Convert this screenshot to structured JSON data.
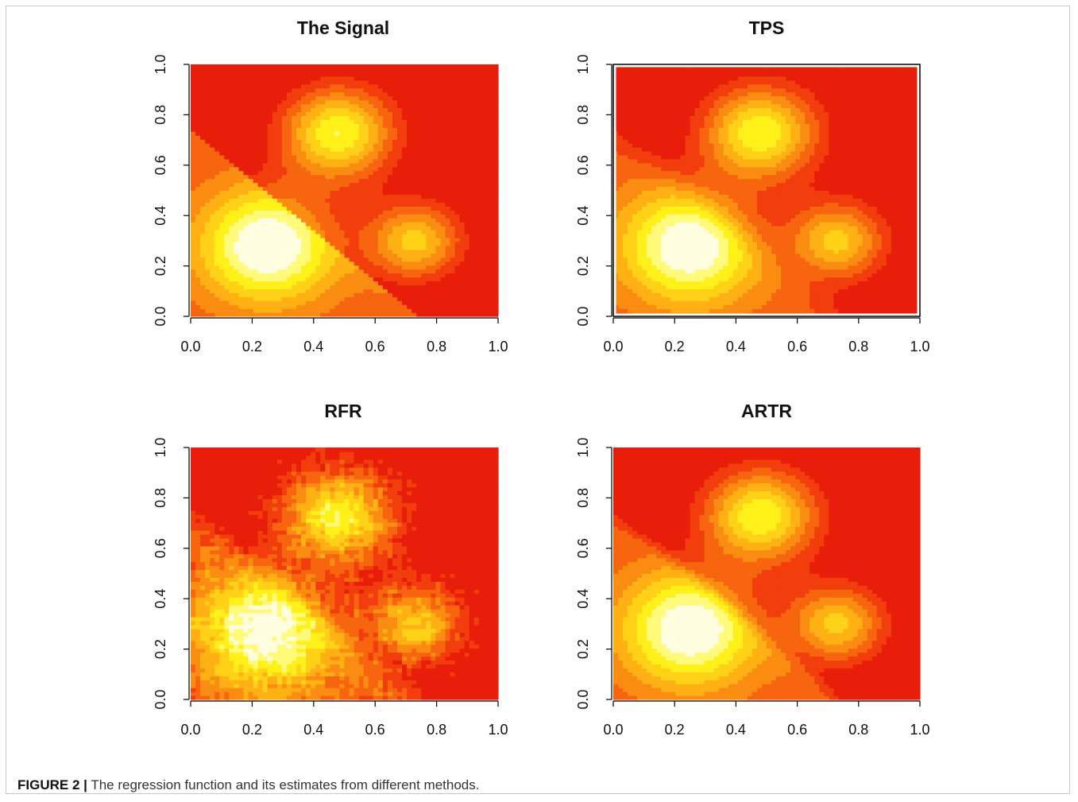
{
  "caption": {
    "label": "FIGURE 2 |",
    "text": "The regression function and its estimates from different methods."
  },
  "colors": [
    "#e81e0a",
    "#f23d0c",
    "#f7650f",
    "#fb8c12",
    "#ffb114",
    "#ffd117",
    "#fff01a",
    "#fffa7a",
    "#fffde0"
  ],
  "chart_data": [
    {
      "type": "heatmap",
      "title": "The Signal",
      "x_ticks": [
        "0.0",
        "0.2",
        "0.4",
        "0.6",
        "0.8",
        "1.0"
      ],
      "y_ticks": [
        "0.0",
        "0.2",
        "0.4",
        "0.6",
        "0.8",
        "1.0"
      ],
      "xlim": [
        0,
        1
      ],
      "ylim": [
        0,
        1
      ],
      "surface": {
        "bumps": [
          [
            0.48,
            0.73,
            0.95,
            0.13
          ],
          [
            0.73,
            0.3,
            0.75,
            0.11
          ],
          [
            0.25,
            0.28,
            0.9,
            0.16
          ]
        ],
        "discontinuity": "x + y = 0.75",
        "jump": 0.35
      },
      "colormap": "heat"
    },
    {
      "type": "heatmap",
      "title": "TPS",
      "x_ticks": [
        "0.0",
        "0.2",
        "0.4",
        "0.6",
        "0.8",
        "1.0"
      ],
      "y_ticks": [
        "0.0",
        "0.2",
        "0.4",
        "0.6",
        "0.8",
        "1.0"
      ],
      "xlim": [
        0,
        1
      ],
      "ylim": [
        0,
        1
      ],
      "colormap": "heat"
    },
    {
      "type": "heatmap",
      "title": "RFR",
      "x_ticks": [
        "0.0",
        "0.2",
        "0.4",
        "0.6",
        "0.8",
        "1.0"
      ],
      "y_ticks": [
        "0.0",
        "0.2",
        "0.4",
        "0.6",
        "0.8",
        "1.0"
      ],
      "xlim": [
        0,
        1
      ],
      "ylim": [
        0,
        1
      ],
      "colormap": "heat"
    },
    {
      "type": "heatmap",
      "title": "ARTR",
      "x_ticks": [
        "0.0",
        "0.2",
        "0.4",
        "0.6",
        "0.8",
        "1.0"
      ],
      "y_ticks": [
        "0.0",
        "0.2",
        "0.4",
        "0.6",
        "0.8",
        "1.0"
      ],
      "xlim": [
        0,
        1
      ],
      "ylim": [
        0,
        1
      ],
      "colormap": "heat"
    }
  ]
}
